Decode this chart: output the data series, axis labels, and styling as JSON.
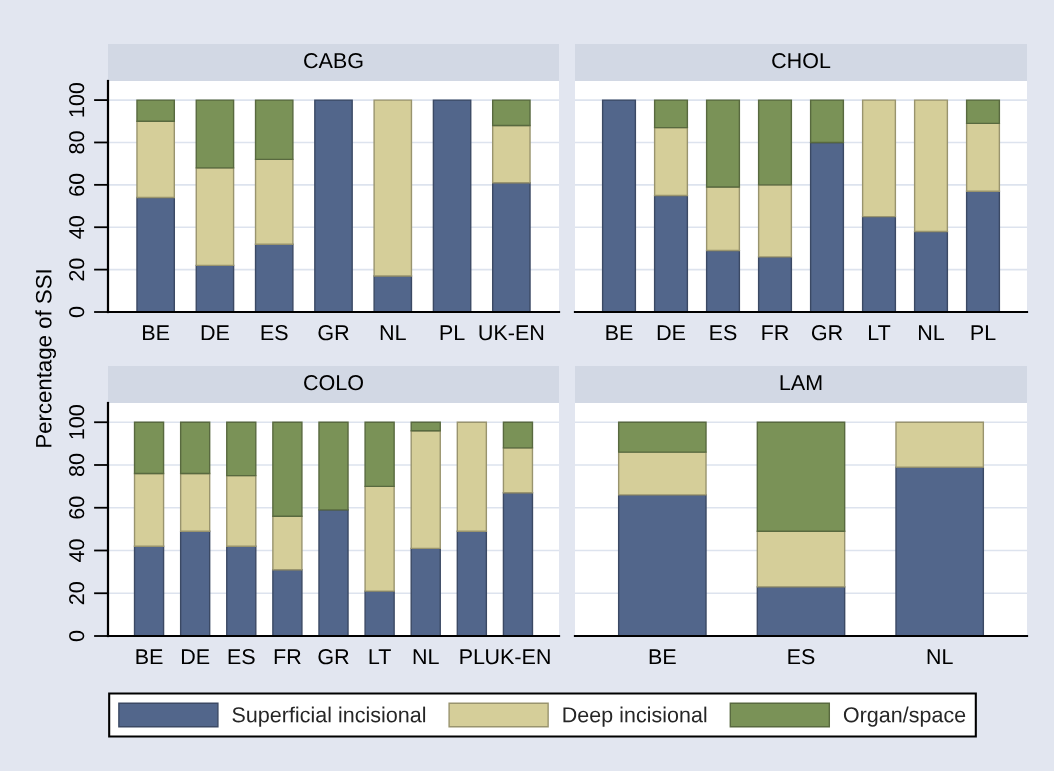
{
  "chart_data": [
    {
      "type": "bar",
      "title": "CABG",
      "ylabel": "Percentage of SSI",
      "categories": [
        "BE",
        "DE",
        "ES",
        "GR",
        "NL",
        "PL",
        "UK-EN"
      ],
      "stacked": true,
      "ylim": [
        0,
        109
      ],
      "yticks": [
        0,
        20,
        40,
        60,
        80,
        100
      ],
      "grid": "y",
      "tick_labels": "xy",
      "legend": "bottom",
      "series": [
        {
          "name": "Superficial incisional",
          "color": "#52668b",
          "values": [
            54,
            22,
            32,
            100,
            17,
            100,
            61
          ]
        },
        {
          "name": "Deep incisional",
          "color": "#d5ce99",
          "values": [
            36,
            46,
            40,
            0,
            83,
            0,
            27
          ]
        },
        {
          "name": "Organ/space",
          "color": "#7a9257",
          "values": [
            10,
            32,
            28,
            0,
            0,
            0,
            12
          ]
        }
      ]
    },
    {
      "type": "bar",
      "title": "CHOL",
      "categories": [
        "BE",
        "DE",
        "ES",
        "FR",
        "GR",
        "LT",
        "NL",
        "PL"
      ],
      "stacked": true,
      "ylim": [
        0,
        109
      ],
      "yticks": [
        0,
        20,
        40,
        60,
        80,
        100
      ],
      "grid": "y",
      "tick_labels": "x",
      "series": [
        {
          "color": "#52668b",
          "values": [
            100,
            55,
            29,
            26,
            80,
            45,
            38,
            57
          ]
        },
        {
          "color": "#d5ce99",
          "values": [
            0,
            32,
            30,
            34,
            0,
            55,
            62,
            32
          ]
        },
        {
          "color": "#7a9257",
          "values": [
            0,
            13,
            41,
            40,
            20,
            0,
            0,
            11
          ]
        }
      ]
    },
    {
      "type": "bar",
      "title": "COLO",
      "categories": [
        "BE",
        "DE",
        "ES",
        "FR",
        "GR",
        "LT",
        "NL",
        "PL",
        "UK-EN"
      ],
      "stacked": true,
      "ylim": [
        0,
        109
      ],
      "yticks": [
        0,
        20,
        40,
        60,
        80,
        100
      ],
      "grid": "y",
      "tick_labels": "xy",
      "series": [
        {
          "color": "#52668b",
          "values": [
            42,
            49,
            42,
            31,
            59,
            21,
            41,
            49,
            67
          ]
        },
        {
          "color": "#d5ce99",
          "values": [
            34,
            27,
            33,
            25,
            0,
            49,
            55,
            51,
            21
          ]
        },
        {
          "color": "#7a9257",
          "values": [
            24,
            24,
            25,
            44,
            41,
            30,
            4,
            0,
            12
          ]
        }
      ]
    },
    {
      "type": "bar",
      "title": "LAM",
      "categories": [
        "BE",
        "ES",
        "NL"
      ],
      "stacked": true,
      "ylim": [
        0,
        109
      ],
      "yticks": [
        0,
        20,
        40,
        60,
        80,
        100
      ],
      "grid": "y",
      "tick_labels": "x",
      "series": [
        {
          "color": "#52668b",
          "values": [
            66,
            23,
            79
          ]
        },
        {
          "color": "#d5ce99",
          "values": [
            20,
            26,
            21
          ]
        },
        {
          "color": "#7a9257",
          "values": [
            14,
            51,
            0
          ]
        }
      ]
    }
  ]
}
